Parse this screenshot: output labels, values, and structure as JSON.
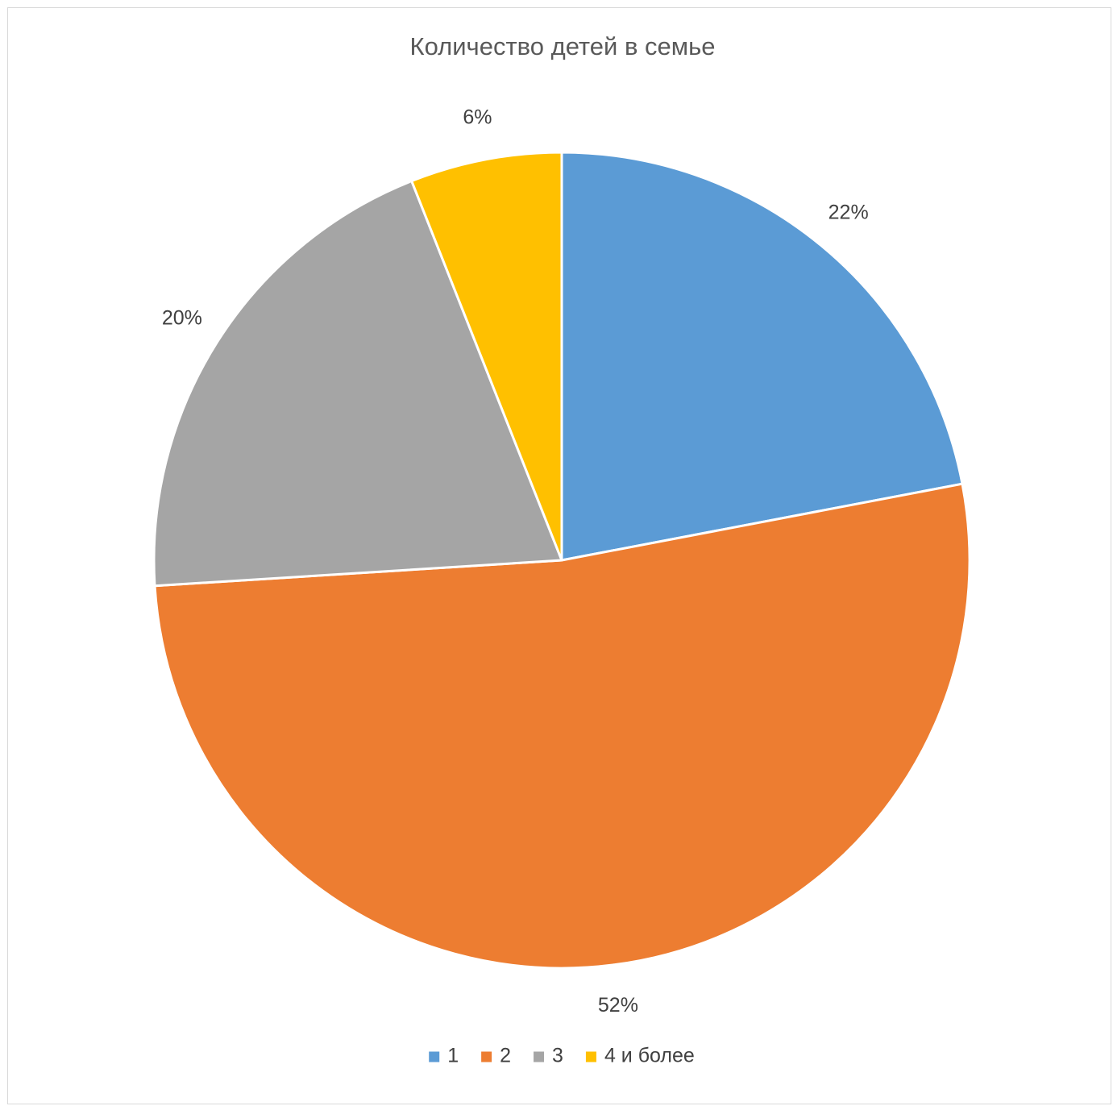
{
  "chart_data": {
    "type": "pie",
    "title": "Количество детей в семье",
    "categories": [
      "1",
      "2",
      "3",
      "4 и более"
    ],
    "values": [
      22,
      52,
      20,
      6
    ],
    "data_labels": [
      "22%",
      "52%",
      "20%",
      "6%"
    ],
    "colors": [
      "#5B9BD5",
      "#ED7D31",
      "#A5A5A5",
      "#FFC000"
    ],
    "start_angle_deg": 0,
    "direction": "clockwise",
    "legend_position": "bottom"
  }
}
